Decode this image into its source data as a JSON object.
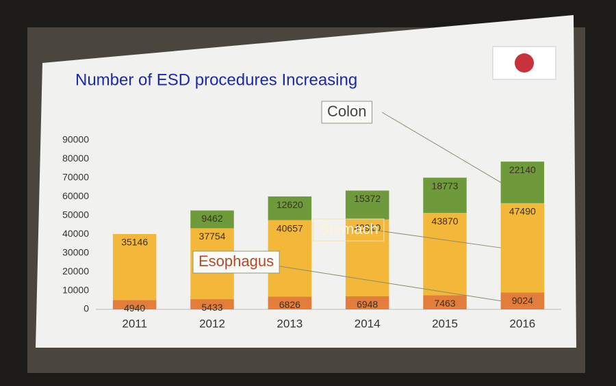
{
  "chart_data": {
    "type": "stacked-bar",
    "title": "Number of ESD procedures Increasing",
    "categories": [
      "2011",
      "2012",
      "2013",
      "2014",
      "2015",
      "2016"
    ],
    "series": [
      {
        "name": "Esophagus",
        "color": "#e27d3c",
        "values": [
          4940,
          5433,
          6826,
          6948,
          7463,
          9024
        ]
      },
      {
        "name": "Stomach",
        "color": "#f3b73a",
        "values": [
          35146,
          37754,
          40657,
          40910,
          43870,
          47490
        ]
      },
      {
        "name": "Colon",
        "color": "#6e9a3c",
        "values": [
          null,
          9462,
          12620,
          15372,
          18773,
          22140
        ]
      }
    ],
    "ylim": [
      0,
      90000
    ],
    "yticks": [
      0,
      10000,
      20000,
      30000,
      40000,
      50000,
      60000,
      70000,
      80000,
      90000
    ],
    "grid": false
  }
}
